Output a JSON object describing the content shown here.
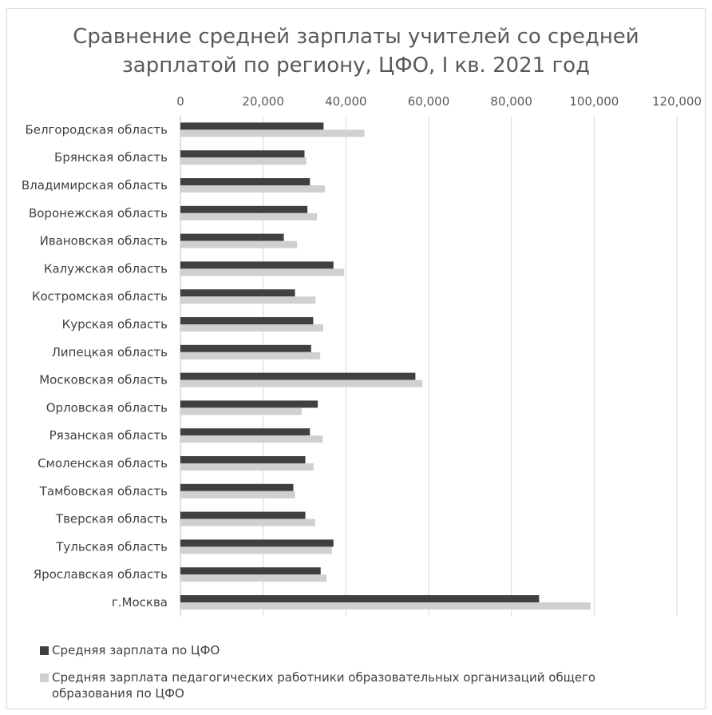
{
  "chart_data": {
    "type": "bar",
    "orientation": "horizontal",
    "title_lines": [
      "Сравнение средней зарплаты учителей со средней",
      "зарплатой по региону, ЦФО,  I кв.  2021 год"
    ],
    "xlim": [
      0,
      120000
    ],
    "x_ticks": [
      0,
      20000,
      40000,
      60000,
      80000,
      100000,
      120000
    ],
    "x_tick_labels": [
      "0",
      "20,000",
      "40,000",
      "60,000",
      "80,000",
      "100,000",
      "120,000"
    ],
    "grid": true,
    "legend_position": "bottom",
    "categories": [
      "Белгородская область",
      "Брянская область",
      "Владимирская область",
      "Воронежская область",
      "Ивановская область",
      "Калужская область",
      "Костромская область",
      "Курская область",
      "Липецкая область",
      "Московская область",
      "Орловская область",
      "Рязанская область",
      "Смоленская область",
      "Тамбовская область",
      "Тверская область",
      "Тульская область",
      "Ярославская область",
      "г.Москва"
    ],
    "series": [
      {
        "name": "Средняя зарплата по ЦФО",
        "color": "#404040",
        "values": [
          34600,
          30000,
          31300,
          30700,
          25000,
          37000,
          27700,
          32100,
          31600,
          56800,
          33200,
          31300,
          30200,
          27300,
          30200,
          37000,
          33900,
          86700
        ]
      },
      {
        "name": "Средняя зарплата педагогических работники образовательных организаций общего образования по ЦФО",
        "color": "#d0d0d0",
        "values": [
          44500,
          30400,
          34900,
          33000,
          28200,
          39600,
          32700,
          34500,
          33800,
          58500,
          29300,
          34400,
          32200,
          27700,
          32600,
          36600,
          35300,
          99100
        ]
      }
    ]
  }
}
